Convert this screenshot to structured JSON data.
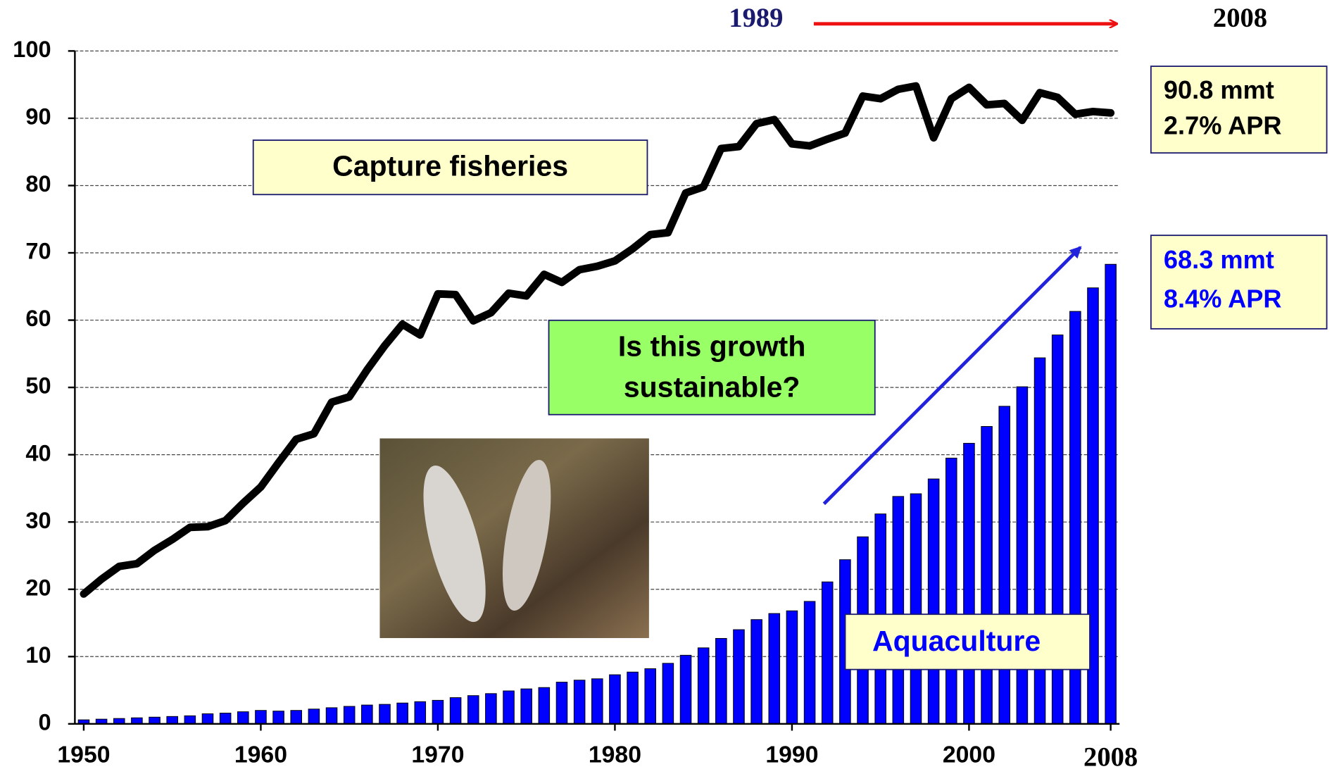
{
  "chart_data": {
    "type": "bar",
    "x": [
      1950,
      1951,
      1952,
      1953,
      1954,
      1955,
      1956,
      1957,
      1958,
      1959,
      1960,
      1961,
      1962,
      1963,
      1964,
      1965,
      1966,
      1967,
      1968,
      1969,
      1970,
      1971,
      1972,
      1973,
      1974,
      1975,
      1976,
      1977,
      1978,
      1979,
      1980,
      1981,
      1982,
      1983,
      1984,
      1985,
      1986,
      1987,
      1988,
      1989,
      1990,
      1991,
      1992,
      1993,
      1994,
      1995,
      1996,
      1997,
      1998,
      1999,
      2000,
      2001,
      2002,
      2003,
      2004,
      2005,
      2006,
      2007,
      2008
    ],
    "series": [
      {
        "name": "Capture fisheries",
        "type": "line",
        "color": "#000000",
        "values": [
          19.3,
          21.5,
          23.4,
          23.8,
          25.8,
          27.4,
          29.2,
          29.3,
          30.2,
          32.8,
          35.2,
          38.8,
          42.3,
          43.1,
          47.8,
          48.6,
          52.6,
          56.2,
          59.4,
          57.8,
          63.9,
          63.8,
          59.9,
          61.1,
          64.0,
          63.6,
          66.8,
          65.6,
          67.5,
          68.0,
          68.8,
          70.6,
          72.7,
          73.0,
          78.9,
          79.8,
          85.5,
          85.8,
          89.2,
          89.8,
          86.2,
          85.9,
          86.9,
          87.8,
          93.3,
          92.9,
          94.3,
          94.8,
          87.1,
          92.9,
          94.6,
          92.0,
          92.2,
          89.7,
          93.8,
          93.1,
          90.6,
          91.0,
          90.8
        ]
      },
      {
        "name": "Aquaculture",
        "type": "bar",
        "color": "#0000ff",
        "values": [
          0.6,
          0.7,
          0.8,
          0.9,
          1.0,
          1.1,
          1.2,
          1.5,
          1.6,
          1.8,
          2.0,
          1.9,
          2.0,
          2.2,
          2.4,
          2.6,
          2.8,
          2.9,
          3.1,
          3.3,
          3.5,
          3.9,
          4.2,
          4.5,
          4.9,
          5.2,
          5.4,
          6.2,
          6.5,
          6.7,
          7.3,
          7.7,
          8.2,
          9.0,
          10.2,
          11.3,
          12.7,
          14.0,
          15.5,
          16.4,
          16.8,
          18.2,
          21.1,
          24.4,
          27.8,
          31.2,
          33.8,
          34.2,
          36.4,
          39.5,
          41.7,
          44.2,
          47.2,
          50.1,
          54.4,
          57.8,
          61.3,
          64.8,
          68.3
        ]
      }
    ],
    "xlim": [
      1949.5,
      2008.5
    ],
    "xticks": [
      1950,
      1960,
      1970,
      1980,
      1990,
      2000,
      2008
    ],
    "ylim": [
      0,
      100
    ],
    "yticks": [
      0,
      10,
      20,
      30,
      40,
      50,
      60,
      70,
      80,
      90,
      100
    ],
    "grid": true,
    "annotations": {
      "period_start": "1989",
      "period_end": "2008",
      "capture_stats": [
        "90.8 mmt",
        "2.7% APR"
      ],
      "aquaculture_stats": [
        "68.3 mmt",
        "8.4% APR"
      ],
      "question": [
        "Is this growth",
        "sustainable?"
      ]
    }
  }
}
